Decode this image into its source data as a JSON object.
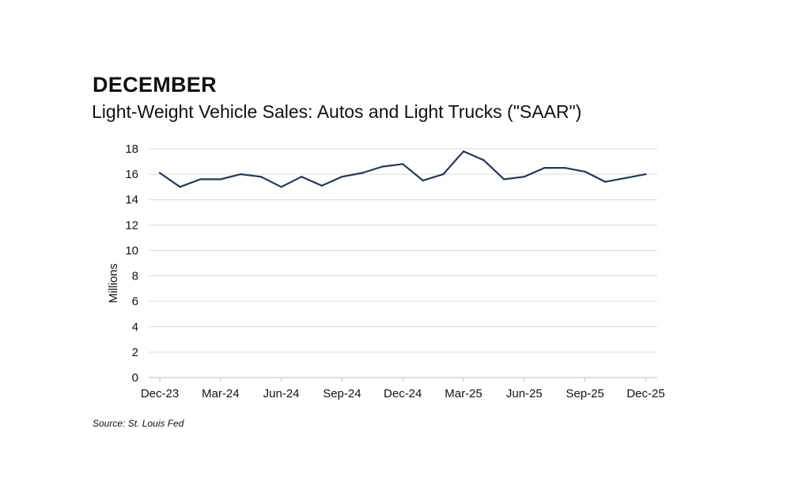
{
  "header": {
    "heading": "DECEMBER"
  },
  "footer": {
    "source": "Source: St. Louis Fed"
  },
  "chart_data": {
    "type": "line",
    "title": "Light-Weight Vehicle Sales: Autos and Light Trucks (\"SAAR\")",
    "xlabel": "",
    "ylabel": "Millions",
    "ylim": [
      0,
      18
    ],
    "yticks": [
      0,
      2,
      4,
      6,
      8,
      10,
      12,
      14,
      16,
      18
    ],
    "xtick_labels": [
      "Dec-23",
      "Mar-24",
      "Jun-24",
      "Sep-24",
      "Dec-24",
      "Mar-25",
      "Jun-25",
      "Sep-25",
      "Dec-25"
    ],
    "grid": true,
    "line_color": "#1f3864",
    "categories": [
      "Dec-23",
      "Jan-24",
      "Feb-24",
      "Mar-24",
      "Apr-24",
      "May-24",
      "Jun-24",
      "Jul-24",
      "Aug-24",
      "Sep-24",
      "Oct-24",
      "Nov-24",
      "Dec-24",
      "Jan-25",
      "Feb-25",
      "Mar-25",
      "Apr-25",
      "May-25",
      "Jun-25",
      "Jul-25",
      "Aug-25",
      "Sep-25",
      "Oct-25",
      "Nov-25",
      "Dec-25"
    ],
    "series": [
      {
        "values": [
          16.1,
          15.0,
          15.6,
          15.6,
          16.0,
          15.8,
          15.0,
          15.8,
          15.1,
          15.8,
          16.1,
          16.6,
          16.8,
          15.5,
          16.0,
          17.8,
          17.1,
          15.6,
          15.8,
          16.5,
          16.5,
          16.2,
          15.4,
          15.7,
          16.0
        ]
      }
    ]
  }
}
